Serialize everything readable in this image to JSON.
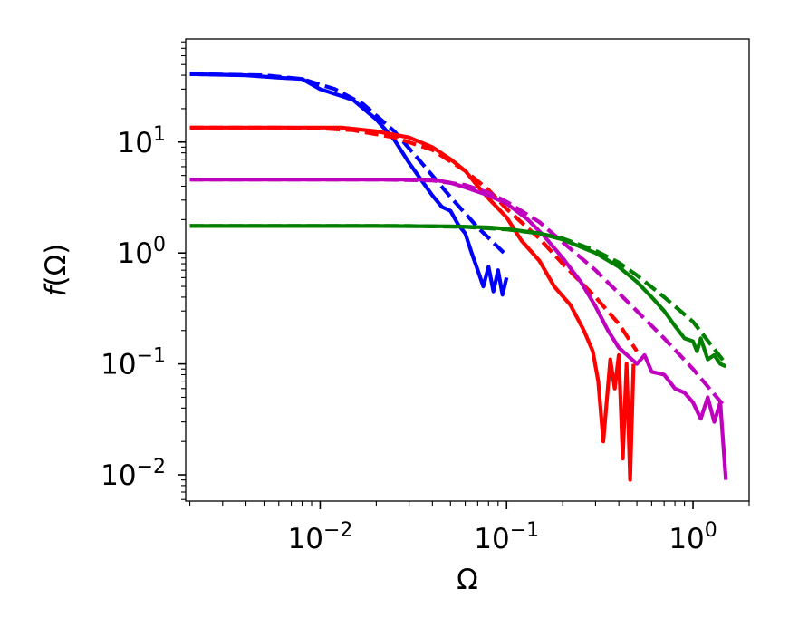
{
  "chart_data": {
    "type": "line",
    "xlabel": "Ω",
    "ylabel": "f(Ω)",
    "xscale": "log",
    "yscale": "log",
    "xlim": [
      0.0019,
      2.0
    ],
    "ylim": [
      0.0058,
      85
    ],
    "xticks": [
      {
        "value": 0.01,
        "base": "10",
        "exp": "−2"
      },
      {
        "value": 0.1,
        "base": "10",
        "exp": "−1"
      },
      {
        "value": 1,
        "base": "10",
        "exp": "0"
      }
    ],
    "yticks": [
      {
        "value": 0.01,
        "base": "10",
        "exp": "−2"
      },
      {
        "value": 0.1,
        "base": "10",
        "exp": "−1"
      },
      {
        "value": 1,
        "base": "10",
        "exp": "0"
      },
      {
        "value": 10,
        "base": "10",
        "exp": "1"
      }
    ],
    "grid": false,
    "legend": "none",
    "series": [
      {
        "color": "#0000ff",
        "style": "solid",
        "x": [
          0.002,
          0.004,
          0.006,
          0.008,
          0.01,
          0.015,
          0.02,
          0.025,
          0.03,
          0.035,
          0.04,
          0.045,
          0.05,
          0.055,
          0.06,
          0.065,
          0.07,
          0.075,
          0.08,
          0.085,
          0.09,
          0.095,
          0.1
        ],
        "y": [
          41,
          40,
          38,
          37,
          30,
          24,
          16,
          10.5,
          6.5,
          4.5,
          3.3,
          2.6,
          2.4,
          1.8,
          1.5,
          1.0,
          0.7,
          0.5,
          0.75,
          0.45,
          0.7,
          0.42,
          0.6
        ]
      },
      {
        "color": "#0000ff",
        "style": "dashed",
        "x": [
          0.002,
          0.005,
          0.008,
          0.012,
          0.017,
          0.025,
          0.035,
          0.05,
          0.07,
          0.1
        ],
        "y": [
          41,
          40,
          37,
          30,
          22,
          12.5,
          6.5,
          3.2,
          1.7,
          0.95
        ]
      },
      {
        "color": "#ff0000",
        "style": "solid",
        "x": [
          0.002,
          0.005,
          0.01,
          0.013,
          0.02,
          0.03,
          0.04,
          0.05,
          0.06,
          0.07,
          0.08,
          0.1,
          0.12,
          0.15,
          0.18,
          0.22,
          0.26,
          0.29,
          0.31,
          0.33,
          0.36,
          0.38,
          0.4,
          0.42,
          0.44,
          0.46,
          0.48
        ],
        "y": [
          13.5,
          13.5,
          13.5,
          13.5,
          12.5,
          11,
          9,
          7,
          5.5,
          4.0,
          3.1,
          2.1,
          1.3,
          0.85,
          0.5,
          0.34,
          0.2,
          0.13,
          0.07,
          0.02,
          0.11,
          0.06,
          0.12,
          0.014,
          0.1,
          0.009,
          0.1
        ]
      },
      {
        "color": "#ff0000",
        "style": "dashed",
        "x": [
          0.002,
          0.006,
          0.01,
          0.015,
          0.025,
          0.04,
          0.06,
          0.08,
          0.1,
          0.15,
          0.2,
          0.3,
          0.4,
          0.5
        ],
        "y": [
          13.5,
          13.5,
          13.3,
          12.8,
          11,
          8.5,
          5.5,
          3.7,
          2.5,
          1.35,
          0.8,
          0.4,
          0.23,
          0.13
        ]
      },
      {
        "color": "#bf00bf",
        "style": "solid",
        "x": [
          0.002,
          0.01,
          0.02,
          0.03,
          0.04,
          0.05,
          0.06,
          0.08,
          0.1,
          0.13,
          0.16,
          0.2,
          0.25,
          0.3,
          0.35,
          0.4,
          0.5,
          0.55,
          0.6,
          0.7,
          0.8,
          0.9,
          1.0,
          1.1,
          1.2,
          1.3,
          1.4,
          1.5
        ],
        "y": [
          4.6,
          4.6,
          4.6,
          4.6,
          4.6,
          4.3,
          3.9,
          3.3,
          2.8,
          2.0,
          1.4,
          0.9,
          0.55,
          0.33,
          0.2,
          0.14,
          0.1,
          0.12,
          0.085,
          0.08,
          0.06,
          0.055,
          0.045,
          0.032,
          0.05,
          0.03,
          0.045,
          0.009
        ]
      },
      {
        "color": "#bf00bf",
        "style": "dashed",
        "x": [
          0.002,
          0.01,
          0.02,
          0.04,
          0.06,
          0.08,
          0.1,
          0.15,
          0.2,
          0.3,
          0.5,
          0.7,
          1.0,
          1.5
        ],
        "y": [
          4.6,
          4.6,
          4.6,
          4.5,
          4.1,
          3.5,
          2.9,
          1.9,
          1.25,
          0.7,
          0.3,
          0.17,
          0.09,
          0.04
        ]
      },
      {
        "color": "#007f00",
        "style": "solid",
        "x": [
          0.002,
          0.01,
          0.02,
          0.05,
          0.08,
          0.1,
          0.15,
          0.2,
          0.3,
          0.4,
          0.5,
          0.6,
          0.7,
          0.8,
          0.9,
          1.0,
          1.05,
          1.1,
          1.2,
          1.3,
          1.4,
          1.5
        ],
        "y": [
          1.75,
          1.75,
          1.75,
          1.74,
          1.7,
          1.65,
          1.5,
          1.32,
          1.0,
          0.75,
          0.55,
          0.4,
          0.3,
          0.22,
          0.17,
          0.16,
          0.13,
          0.17,
          0.11,
          0.12,
          0.1,
          0.095
        ]
      },
      {
        "color": "#007f00",
        "style": "dashed",
        "x": [
          0.002,
          0.01,
          0.03,
          0.06,
          0.1,
          0.15,
          0.2,
          0.3,
          0.4,
          0.5,
          0.7,
          1.0,
          1.5
        ],
        "y": [
          1.75,
          1.75,
          1.75,
          1.72,
          1.63,
          1.5,
          1.35,
          1.05,
          0.82,
          0.63,
          0.4,
          0.24,
          0.1
        ]
      }
    ]
  }
}
